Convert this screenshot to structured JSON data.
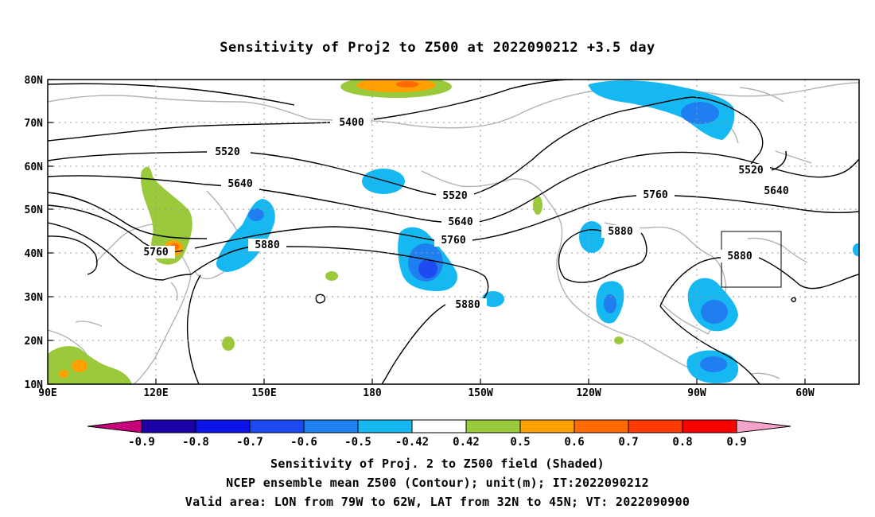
{
  "title": "Sensitivity of Proj2 to Z500 at 2022090212 +3.5 day",
  "map": {
    "lon_labels": [
      "90E",
      "120E",
      "150E",
      "180",
      "150W",
      "120W",
      "90W",
      "60W"
    ],
    "lat_labels": [
      "80N",
      "70N",
      "60N",
      "50N",
      "40N",
      "30N",
      "20N",
      "10N"
    ],
    "contour_labels": [
      "5400",
      "5520",
      "5520",
      "5520",
      "5640",
      "5640",
      "5640",
      "5760",
      "5760",
      "5760",
      "5880",
      "5880",
      "5880",
      "5880"
    ],
    "valid_box": {
      "lon_from": "79W",
      "lon_to": "62W",
      "lat_from": "32N",
      "lat_to": "45N"
    }
  },
  "colorbar": {
    "labels": [
      "-0.9",
      "-0.8",
      "-0.7",
      "-0.6",
      "-0.5",
      "-0.42",
      "0.42",
      "0.5",
      "0.6",
      "0.7",
      "0.8",
      "0.9"
    ],
    "colors": [
      "#c8007a",
      "#1b00a6",
      "#0a14e6",
      "#1e4bf0",
      "#1f7ff0",
      "#16b8f2",
      "#ffffff",
      "#9bc93c",
      "#ff9f00",
      "#ff6a00",
      "#ff3a00",
      "#ff0000",
      "#f5a3c9"
    ]
  },
  "captions": [
    "Sensitivity of Proj. 2 to Z500 field (Shaded)",
    "NCEP ensemble mean Z500 (Contour); unit(m); IT:2022090212",
    "Valid area: LON from 79W to 62W, LAT from 32N to 45N; VT: 2022090900"
  ]
}
